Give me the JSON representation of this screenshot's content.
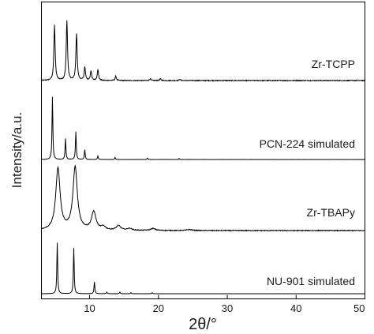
{
  "chart_data": {
    "type": "line",
    "xlabel": "2θ/°",
    "ylabel": "Intensity/a.u.",
    "xlim": [
      3,
      50
    ],
    "x_ticks": [
      10,
      20,
      30,
      40,
      50
    ],
    "grid": false,
    "legend": "none",
    "line_color": "#000000",
    "series": [
      {
        "name": "Zr-TCPP",
        "peaks": [
          [
            4.9,
            0.92
          ],
          [
            6.7,
            1.0
          ],
          [
            8.1,
            0.78
          ],
          [
            9.3,
            0.22
          ],
          [
            10.2,
            0.16
          ],
          [
            11.2,
            0.18
          ],
          [
            13.8,
            0.07
          ],
          [
            18.8,
            0.03
          ],
          [
            20.3,
            0.03
          ],
          [
            23.1,
            0.02
          ]
        ],
        "peak_width": 0.11,
        "noise": 0.007
      },
      {
        "name": "PCN-224 simulated",
        "peaks": [
          [
            4.6,
            0.9
          ],
          [
            6.5,
            0.3
          ],
          [
            8.0,
            0.4
          ],
          [
            9.3,
            0.14
          ],
          [
            11.2,
            0.05
          ],
          [
            13.7,
            0.03
          ],
          [
            18.4,
            0.02
          ],
          [
            23.0,
            0.015
          ]
        ],
        "peak_width": 0.07,
        "noise": 0.001
      },
      {
        "name": "Zr-TBAPy",
        "peaks": [
          [
            5.4,
            0.95
          ],
          [
            7.9,
            0.97
          ],
          [
            10.6,
            0.28
          ],
          [
            12.0,
            0.05
          ],
          [
            14.2,
            0.07
          ],
          [
            15.8,
            0.03
          ],
          [
            19.2,
            0.03
          ],
          [
            24.5,
            0.015
          ]
        ],
        "peak_width": 0.38,
        "noise": 0.006
      },
      {
        "name": "NU-901 simulated",
        "peaks": [
          [
            5.3,
            0.95
          ],
          [
            7.7,
            0.85
          ],
          [
            10.7,
            0.22
          ],
          [
            12.5,
            0.03
          ],
          [
            14.4,
            0.03
          ],
          [
            16.0,
            0.02
          ],
          [
            19.1,
            0.02
          ]
        ],
        "peak_width": 0.07,
        "noise": 0.0008
      }
    ]
  }
}
